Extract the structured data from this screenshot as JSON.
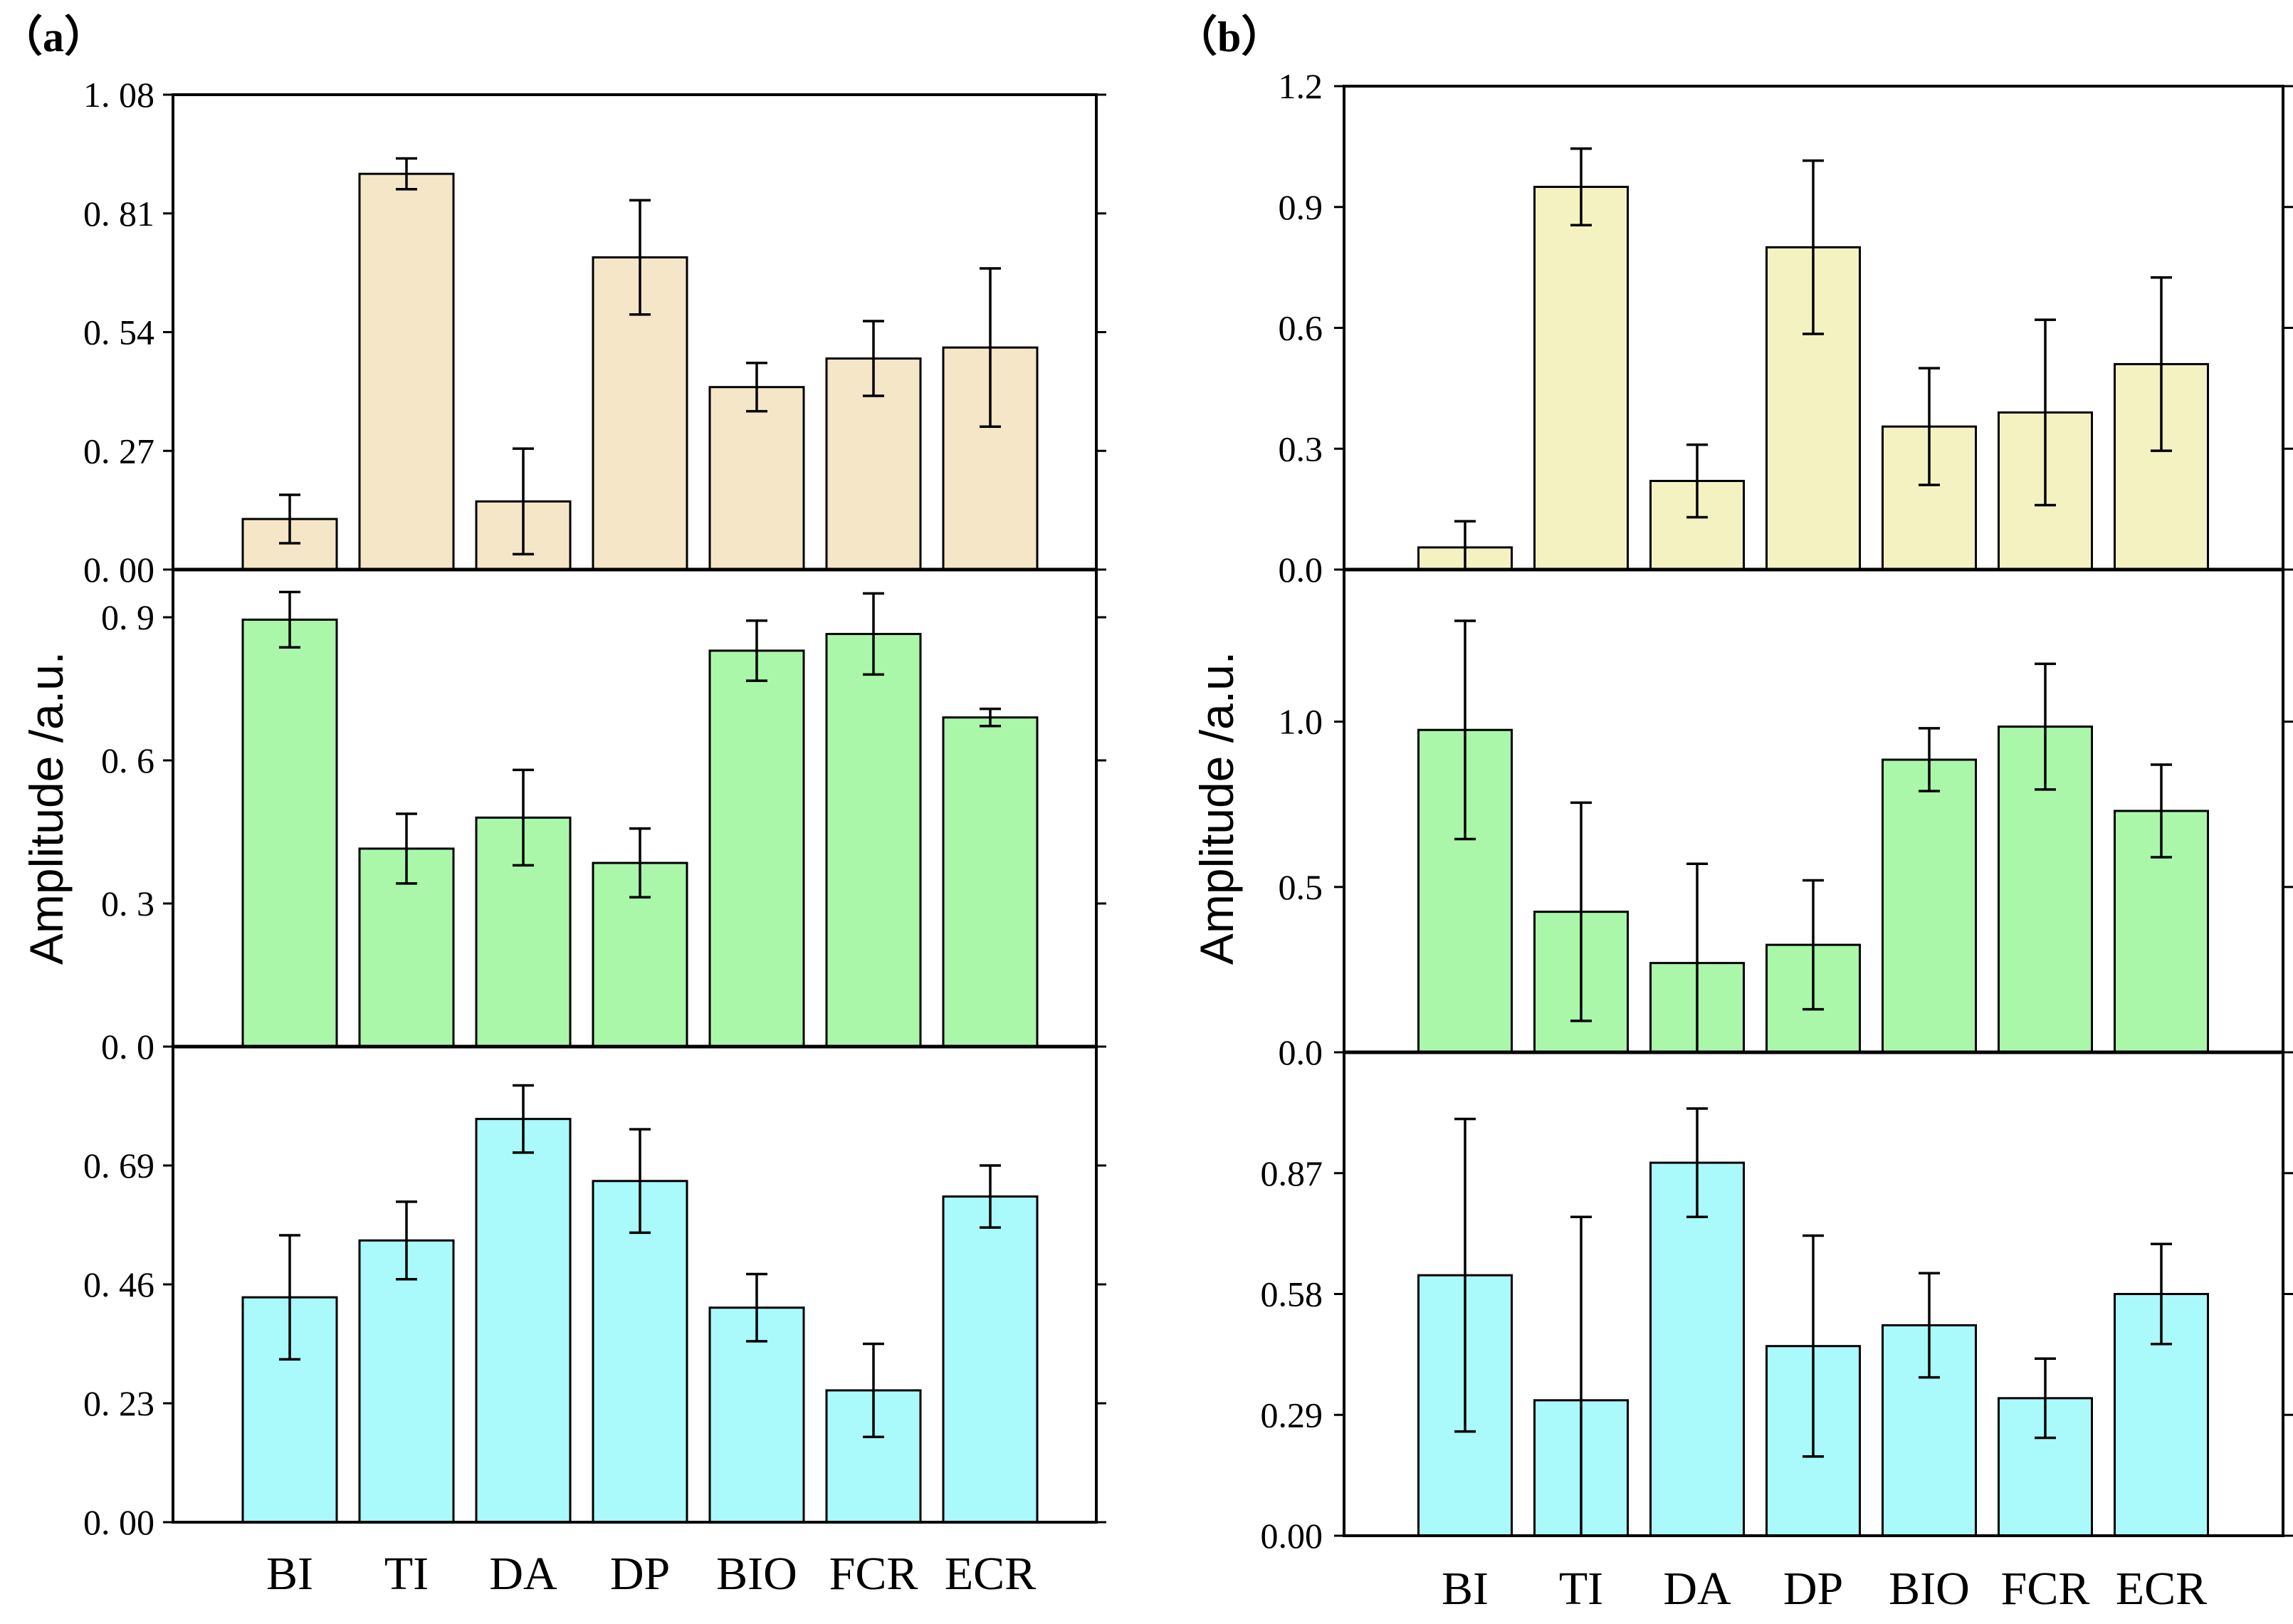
{
  "panel_labels": [
    "（a）",
    "（b）"
  ],
  "chart_data": [
    {
      "type": "bar",
      "panel": "(a)",
      "ylabel": "Amplitude /a.u.",
      "categories": [
        "BI",
        "TI",
        "DA",
        "DP",
        "BIO",
        "FCR",
        "ECR"
      ],
      "subplots": [
        {
          "color": "#f5e6c8",
          "ylim": [
            0,
            1.08
          ],
          "ticks": [
            0,
            0.27,
            0.54,
            0.81,
            1.08
          ],
          "tick_labels": [
            "0. 00",
            "0. 27",
            "0. 54",
            "0. 81",
            "1. 08"
          ],
          "values": [
            0.115,
            0.9,
            0.155,
            0.71,
            0.415,
            0.48,
            0.505
          ],
          "errors": [
            0.055,
            0.035,
            0.12,
            0.13,
            0.055,
            0.085,
            0.18
          ]
        },
        {
          "color": "#aaf7aa",
          "ylim": [
            0,
            1.0
          ],
          "ticks": [
            0,
            0.3,
            0.6,
            0.9
          ],
          "tick_labels": [
            "0. 0",
            "0. 3",
            "0. 6",
            "0. 9"
          ],
          "values": [
            0.895,
            0.415,
            0.48,
            0.385,
            0.83,
            0.865,
            0.69
          ],
          "errors": [
            0.058,
            0.073,
            0.1,
            0.072,
            0.063,
            0.085,
            0.018
          ]
        },
        {
          "color": "#aaf9fb",
          "ylim": [
            0,
            0.92
          ],
          "ticks": [
            0,
            0.23,
            0.46,
            0.69
          ],
          "tick_labels": [
            "0. 00",
            "0. 23",
            "0. 46",
            "0. 69"
          ],
          "values": [
            0.435,
            0.545,
            0.78,
            0.66,
            0.415,
            0.255,
            0.63
          ],
          "errors": [
            0.12,
            0.075,
            0.065,
            0.1,
            0.065,
            0.09,
            0.06
          ]
        }
      ]
    },
    {
      "type": "bar",
      "panel": "(b)",
      "ylabel": "Amplitude /a.u.",
      "categories": [
        "BI",
        "TI",
        "DA",
        "DP",
        "BIO",
        "FCR",
        "ECR"
      ],
      "subplots": [
        {
          "color": "#f5f2c2",
          "ylim": [
            0,
            1.2
          ],
          "ticks": [
            0,
            0.3,
            0.6,
            0.9,
            1.2
          ],
          "tick_labels": [
            "0.0",
            "0.3",
            "0.6",
            "0.9",
            "1.2"
          ],
          "values": [
            0.055,
            0.95,
            0.22,
            0.8,
            0.355,
            0.39,
            0.51
          ],
          "errors": [
            0.065,
            0.095,
            0.09,
            0.215,
            0.145,
            0.23,
            0.215
          ]
        },
        {
          "color": "#aaf7aa",
          "ylim": [
            0,
            1.46
          ],
          "ticks": [
            0,
            0.5,
            1.0
          ],
          "tick_labels": [
            "0.0",
            "0.5",
            "1.0"
          ],
          "values": [
            0.975,
            0.425,
            0.27,
            0.325,
            0.885,
            0.985,
            0.73
          ],
          "errors": [
            0.33,
            0.33,
            0.3,
            0.195,
            0.095,
            0.19,
            0.14
          ]
        },
        {
          "color": "#aaf9fb",
          "ylim": [
            0,
            1.16
          ],
          "ticks": [
            0,
            0.29,
            0.58,
            0.87
          ],
          "tick_labels": [
            "0.00",
            "0.29",
            "0.58",
            "0.87"
          ],
          "values": [
            0.625,
            0.325,
            0.895,
            0.455,
            0.505,
            0.33,
            0.58
          ],
          "errors": [
            0.375,
            0.44,
            0.13,
            0.265,
            0.125,
            0.095,
            0.12
          ]
        }
      ]
    }
  ]
}
